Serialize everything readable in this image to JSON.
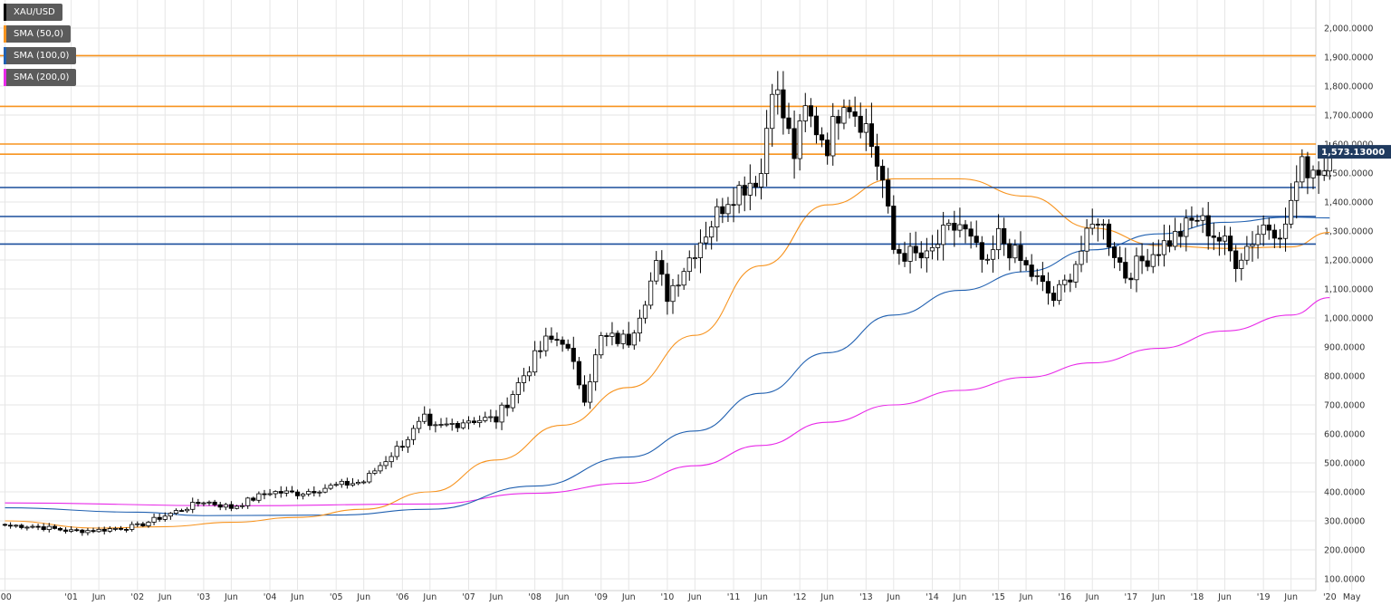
{
  "legend": [
    {
      "label": "XAU/USD",
      "color": "#000000"
    },
    {
      "label": "SMA (50,0)",
      "color": "#f7931e"
    },
    {
      "label": "SMA (100,0)",
      "color": "#2060b0"
    },
    {
      "label": "SMA (200,0)",
      "color": "#e829e8"
    }
  ],
  "price_badge": {
    "label": "1,573.13000",
    "color": "#1f3a5f"
  },
  "colors": {
    "up": "#ffffff",
    "down": "#000000",
    "orange_level": "#f7931e",
    "blue_level": "#1a4e9c",
    "sma50": "#f7931e",
    "sma100": "#2060b0",
    "sma200": "#e829e8",
    "grid": "#e6e6e6"
  },
  "chart_data": {
    "type": "candlestick",
    "symbol": "XAU/USD",
    "timeframe": "monthly",
    "ylim": [
      100,
      2000
    ],
    "y_ticks": [
      "100.0000",
      "200.0000",
      "300.0000",
      "400.0000",
      "500.0000",
      "600.0000",
      "700.0000",
      "800.0000",
      "900.0000",
      "1,000.0000",
      "1,100.0000",
      "1,200.0000",
      "1,300.0000",
      "1,400.0000",
      "1,500.0000",
      "1,600.0000",
      "1,700.0000",
      "1,800.0000",
      "1,900.0000",
      "2,000.0000"
    ],
    "y_tick_values": [
      100,
      200,
      300,
      400,
      500,
      600,
      700,
      800,
      900,
      1000,
      1100,
      1200,
      1300,
      1400,
      1500,
      1600,
      1700,
      1800,
      1900,
      2000
    ],
    "x_ticks": [
      "'00",
      "'01",
      "Jun",
      "'02",
      "Jun",
      "'03",
      "Jun",
      "'04",
      "Jun",
      "'05",
      "Jun",
      "'06",
      "Jun",
      "'07",
      "Jun",
      "'08",
      "Jun",
      "'09",
      "Jun",
      "'10",
      "Jun",
      "'11",
      "Jun",
      "'12",
      "Jun",
      "'13",
      "Jun",
      "'14",
      "Jun",
      "'15",
      "Jun",
      "'16",
      "Jun",
      "'17",
      "Jun",
      "'18",
      "Jun",
      "'19",
      "Jun",
      "'20",
      "May"
    ],
    "x_tick_dates": [
      "2000-01",
      "2001-01",
      "2001-06",
      "2002-01",
      "2002-06",
      "2003-01",
      "2003-06",
      "2004-01",
      "2004-06",
      "2005-01",
      "2005-06",
      "2006-01",
      "2006-06",
      "2007-01",
      "2007-06",
      "2008-01",
      "2008-06",
      "2009-01",
      "2009-06",
      "2010-01",
      "2010-06",
      "2011-01",
      "2011-06",
      "2012-01",
      "2012-06",
      "2013-01",
      "2013-06",
      "2014-01",
      "2014-06",
      "2015-01",
      "2015-06",
      "2016-01",
      "2016-06",
      "2017-01",
      "2017-06",
      "2018-01",
      "2018-06",
      "2019-01",
      "2019-06",
      "2020-01",
      "2020-05"
    ],
    "last_price": 1573.13,
    "horizontal_levels": [
      {
        "value": 1905,
        "color": "orange"
      },
      {
        "value": 1730,
        "color": "orange"
      },
      {
        "value": 1600,
        "color": "orange"
      },
      {
        "value": 1565,
        "color": "orange"
      },
      {
        "value": 1450,
        "color": "blue"
      },
      {
        "value": 1350,
        "color": "blue"
      },
      {
        "value": 1255,
        "color": "blue"
      }
    ],
    "close_anchors": [
      [
        "2000-01",
        285
      ],
      [
        "2000-06",
        282
      ],
      [
        "2001-01",
        265
      ],
      [
        "2001-06",
        268
      ],
      [
        "2002-01",
        282
      ],
      [
        "2002-06",
        318
      ],
      [
        "2003-01",
        368
      ],
      [
        "2003-06",
        346
      ],
      [
        "2004-01",
        400
      ],
      [
        "2004-06",
        395
      ],
      [
        "2005-01",
        422
      ],
      [
        "2005-06",
        436
      ],
      [
        "2006-01",
        568
      ],
      [
        "2006-05",
        650
      ],
      [
        "2006-06",
        613
      ],
      [
        "2007-01",
        650
      ],
      [
        "2007-06",
        650
      ],
      [
        "2007-12",
        834
      ],
      [
        "2008-03",
        917
      ],
      [
        "2008-06",
        930
      ],
      [
        "2008-10",
        730
      ],
      [
        "2009-01",
        928
      ],
      [
        "2009-06",
        925
      ],
      [
        "2009-11",
        1175
      ],
      [
        "2010-01",
        1080
      ],
      [
        "2010-06",
        1240
      ],
      [
        "2010-12",
        1420
      ],
      [
        "2011-06",
        1500
      ],
      [
        "2011-08",
        1825
      ],
      [
        "2011-12",
        1565
      ],
      [
        "2012-02",
        1710
      ],
      [
        "2012-06",
        1600
      ],
      [
        "2012-09",
        1772
      ],
      [
        "2013-01",
        1660
      ],
      [
        "2013-04",
        1472
      ],
      [
        "2013-06",
        1234
      ],
      [
        "2013-12",
        1202
      ],
      [
        "2014-03",
        1284
      ],
      [
        "2014-06",
        1322
      ],
      [
        "2014-11",
        1168
      ],
      [
        "2015-01",
        1283
      ],
      [
        "2015-06",
        1172
      ],
      [
        "2015-11",
        1064
      ],
      [
        "2016-01",
        1116
      ],
      [
        "2016-07",
        1350
      ],
      [
        "2016-12",
        1150
      ],
      [
        "2017-06",
        1242
      ],
      [
        "2017-09",
        1280
      ],
      [
        "2018-01",
        1345
      ],
      [
        "2018-06",
        1253
      ],
      [
        "2018-08",
        1200
      ],
      [
        "2019-01",
        1320
      ],
      [
        "2019-05",
        1305
      ],
      [
        "2019-06",
        1409
      ],
      [
        "2019-08",
        1520
      ],
      [
        "2019-12",
        1517
      ],
      [
        "2020-01",
        1573.13
      ]
    ],
    "sma50_anchors": [
      [
        "2000-01",
        300
      ],
      [
        "2001-06",
        275
      ],
      [
        "2002-06",
        280
      ],
      [
        "2003-06",
        295
      ],
      [
        "2004-06",
        312
      ],
      [
        "2005-06",
        340
      ],
      [
        "2006-06",
        400
      ],
      [
        "2007-06",
        510
      ],
      [
        "2008-06",
        630
      ],
      [
        "2009-06",
        760
      ],
      [
        "2010-06",
        940
      ],
      [
        "2011-06",
        1180
      ],
      [
        "2012-06",
        1390
      ],
      [
        "2013-06",
        1480
      ],
      [
        "2014-06",
        1480
      ],
      [
        "2015-06",
        1420
      ],
      [
        "2016-06",
        1310
      ],
      [
        "2017-06",
        1250
      ],
      [
        "2018-06",
        1240
      ],
      [
        "2019-06",
        1245
      ],
      [
        "2020-01",
        1295
      ]
    ],
    "sma100_anchors": [
      [
        "2000-01",
        345
      ],
      [
        "2002-01",
        330
      ],
      [
        "2003-01",
        318
      ],
      [
        "2005-01",
        320
      ],
      [
        "2006-06",
        340
      ],
      [
        "2008-01",
        420
      ],
      [
        "2009-06",
        520
      ],
      [
        "2010-06",
        610
      ],
      [
        "2011-06",
        740
      ],
      [
        "2012-06",
        880
      ],
      [
        "2013-06",
        1010
      ],
      [
        "2014-06",
        1095
      ],
      [
        "2015-06",
        1160
      ],
      [
        "2016-06",
        1235
      ],
      [
        "2017-06",
        1290
      ],
      [
        "2018-06",
        1330
      ],
      [
        "2019-06",
        1348
      ],
      [
        "2020-01",
        1345
      ]
    ],
    "sma200_anchors": [
      [
        "2000-01",
        362
      ],
      [
        "2003-06",
        352
      ],
      [
        "2006-06",
        358
      ],
      [
        "2008-01",
        395
      ],
      [
        "2009-06",
        430
      ],
      [
        "2010-06",
        490
      ],
      [
        "2011-06",
        560
      ],
      [
        "2012-06",
        640
      ],
      [
        "2013-06",
        700
      ],
      [
        "2014-06",
        750
      ],
      [
        "2015-06",
        795
      ],
      [
        "2016-06",
        845
      ],
      [
        "2017-06",
        895
      ],
      [
        "2018-06",
        955
      ],
      [
        "2019-06",
        1010
      ],
      [
        "2020-01",
        1070
      ]
    ]
  }
}
